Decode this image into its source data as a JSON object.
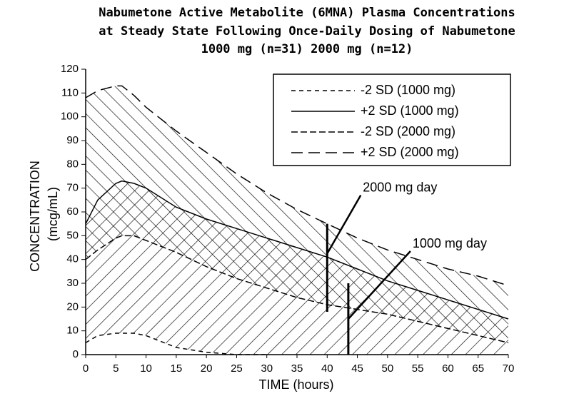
{
  "chart_data": {
    "type": "line",
    "title": [
      "Nabumetone Active Metabolite (6MNA) Plasma Concentrations",
      "at Steady State Following Once-Daily Dosing of Nabumetone",
      "1000 mg (n=31)     2000 mg (n=12)"
    ],
    "x_label": "TIME (hours)",
    "y_label": [
      "CONCENTRATION",
      "(mcg/mL)"
    ],
    "x": [
      0,
      2,
      5,
      6,
      8,
      10,
      15,
      20,
      25,
      30,
      35,
      40,
      45,
      50,
      55,
      60,
      65,
      70
    ],
    "series": [
      {
        "name": "-2 SD (1000 mg)",
        "color": "#000",
        "dash": "6 5",
        "values": [
          5,
          8,
          9,
          9,
          9,
          8,
          3,
          1,
          0,
          0,
          null,
          null,
          null,
          null,
          null,
          null,
          null,
          null
        ]
      },
      {
        "name": "+2 SD (1000 mg)",
        "color": "#000",
        "dash": "none",
        "values": [
          55,
          65,
          72,
          73,
          72,
          70,
          62,
          57,
          53,
          49,
          45,
          41,
          36,
          31,
          27,
          23,
          19,
          15
        ]
      },
      {
        "name": "-2 SD (2000 mg)",
        "color": "#000",
        "dash": "9 4",
        "values": [
          40,
          44,
          49,
          50,
          50,
          48,
          43,
          37,
          32,
          28,
          24,
          21,
          19,
          17,
          14,
          11,
          8,
          5
        ]
      },
      {
        "name": "+2 SD (2000 mg)",
        "color": "#000",
        "dash": "16 8",
        "values": [
          108,
          111,
          113,
          113,
          109,
          104,
          94,
          85,
          76,
          68,
          61,
          55,
          49,
          44,
          40,
          36,
          33,
          29
        ]
      }
    ],
    "annotations": [
      {
        "text": "2000 mg day",
        "x": 40,
        "y_range": [
          18,
          55
        ]
      },
      {
        "text": "1000 mg day",
        "x": 43.5,
        "y_range": [
          0,
          30
        ]
      }
    ],
    "xlim": [
      0,
      70
    ],
    "ylim": [
      0,
      120
    ],
    "xticks": [
      0,
      5,
      10,
      15,
      20,
      25,
      30,
      35,
      40,
      45,
      50,
      55,
      60,
      65,
      70
    ],
    "yticks": [
      0,
      10,
      20,
      30,
      40,
      50,
      60,
      70,
      80,
      90,
      100,
      110,
      120
    ]
  }
}
